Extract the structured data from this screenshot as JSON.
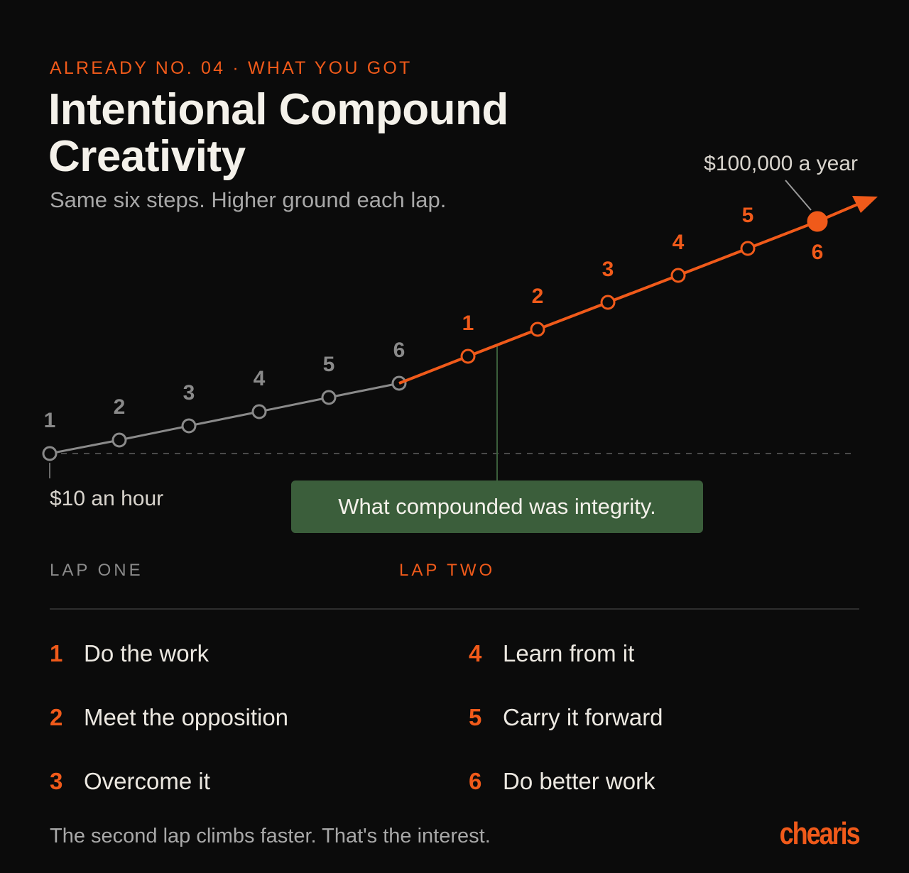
{
  "header": {
    "kicker": "ALREADY NO. 04 · WHAT YOU GOT",
    "title": "Intentional Compound Creativity",
    "subtitle": "Same six steps. Higher ground each lap."
  },
  "chart": {
    "lap_one_points": [
      "1",
      "2",
      "3",
      "4",
      "5",
      "6"
    ],
    "lap_two_points": [
      "1",
      "2",
      "3",
      "4",
      "5",
      "6"
    ],
    "start_label": "$10 an hour",
    "end_label": "$100,000 a year",
    "callout": "What compounded was integrity.",
    "lap_one_label": "LAP ONE",
    "lap_two_label": "LAP TWO",
    "colors": {
      "lap_one": "#8a8a8a",
      "lap_two": "#f05a1a",
      "callout_bg": "#3b5e3b"
    }
  },
  "steps": [
    {
      "num": "1",
      "label": "Do the work"
    },
    {
      "num": "2",
      "label": "Meet the opposition"
    },
    {
      "num": "3",
      "label": "Overcome it"
    },
    {
      "num": "4",
      "label": "Learn from it"
    },
    {
      "num": "5",
      "label": "Carry it forward"
    },
    {
      "num": "6",
      "label": "Do better work"
    }
  ],
  "footer": {
    "note": "The second lap climbs faster. That's the interest.",
    "logo": "chearis"
  }
}
